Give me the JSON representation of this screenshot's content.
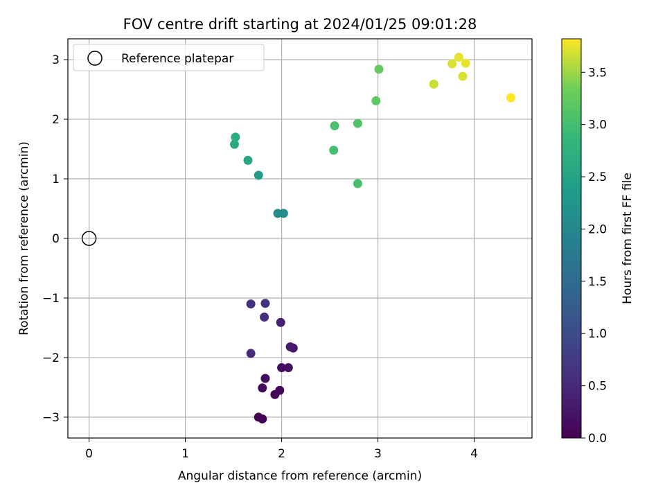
{
  "chart_data": {
    "type": "scatter",
    "title": "FOV centre drift starting at 2024/01/25 09:01:28",
    "xlabel": "Angular distance from reference (arcmin)",
    "ylabel": "Rotation from reference (arcmin)",
    "xlim": [
      -0.22,
      4.6
    ],
    "ylim": [
      -3.35,
      3.35
    ],
    "x_ticks": [
      0,
      1,
      2,
      3,
      4
    ],
    "y_ticks": [
      -3,
      -2,
      -1,
      0,
      1,
      2,
      3
    ],
    "grid": true,
    "legend": {
      "placement": "top-left",
      "entries": [
        "Reference platepar"
      ]
    },
    "reference_point": {
      "x": 0,
      "y": 0
    },
    "colorbar": {
      "label": "Hours from first FF file",
      "range": [
        0.0,
        3.82
      ],
      "ticks": [
        0.0,
        0.5,
        1.0,
        1.5,
        2.0,
        2.5,
        3.0,
        3.5
      ],
      "tick_labels": [
        "0.0",
        "0.5",
        "1.0",
        "1.5",
        "2.0",
        "2.5",
        "3.0",
        "3.5"
      ],
      "colormap": "viridis"
    },
    "points": [
      {
        "x": 1.76,
        "y": -3.0,
        "t": 0.0
      },
      {
        "x": 1.8,
        "y": -3.03,
        "t": 0.02
      },
      {
        "x": 1.93,
        "y": -2.62,
        "t": 0.05
      },
      {
        "x": 1.98,
        "y": -2.55,
        "t": 0.07
      },
      {
        "x": 1.8,
        "y": -2.51,
        "t": 0.1
      },
      {
        "x": 1.83,
        "y": -2.35,
        "t": 0.12
      },
      {
        "x": 2.0,
        "y": -2.17,
        "t": 0.15
      },
      {
        "x": 2.07,
        "y": -2.17,
        "t": 0.18
      },
      {
        "x": 2.12,
        "y": -1.84,
        "t": 0.25
      },
      {
        "x": 2.09,
        "y": -1.82,
        "t": 0.3
      },
      {
        "x": 1.99,
        "y": -1.41,
        "t": 0.4
      },
      {
        "x": 1.68,
        "y": -1.93,
        "t": 0.5
      },
      {
        "x": 1.82,
        "y": -1.32,
        "t": 0.55
      },
      {
        "x": 1.68,
        "y": -1.1,
        "t": 0.6
      },
      {
        "x": 1.83,
        "y": -1.09,
        "t": 0.62
      },
      {
        "x": 1.96,
        "y": 0.42,
        "t": 2.1
      },
      {
        "x": 2.02,
        "y": 0.42,
        "t": 2.12
      },
      {
        "x": 1.76,
        "y": 1.06,
        "t": 2.35
      },
      {
        "x": 1.65,
        "y": 1.31,
        "t": 2.55
      },
      {
        "x": 1.51,
        "y": 1.58,
        "t": 2.62
      },
      {
        "x": 1.52,
        "y": 1.7,
        "t": 2.68
      },
      {
        "x": 2.54,
        "y": 1.48,
        "t": 3.0
      },
      {
        "x": 2.55,
        "y": 1.89,
        "t": 3.05
      },
      {
        "x": 2.79,
        "y": 0.92,
        "t": 3.05
      },
      {
        "x": 2.79,
        "y": 1.93,
        "t": 3.1
      },
      {
        "x": 2.98,
        "y": 2.31,
        "t": 3.2
      },
      {
        "x": 3.01,
        "y": 2.84,
        "t": 3.25
      },
      {
        "x": 3.58,
        "y": 2.59,
        "t": 3.65
      },
      {
        "x": 3.77,
        "y": 2.93,
        "t": 3.7
      },
      {
        "x": 3.84,
        "y": 3.04,
        "t": 3.74
      },
      {
        "x": 3.88,
        "y": 2.72,
        "t": 3.7
      },
      {
        "x": 3.91,
        "y": 2.94,
        "t": 3.75
      },
      {
        "x": 4.38,
        "y": 2.36,
        "t": 3.82
      }
    ]
  }
}
